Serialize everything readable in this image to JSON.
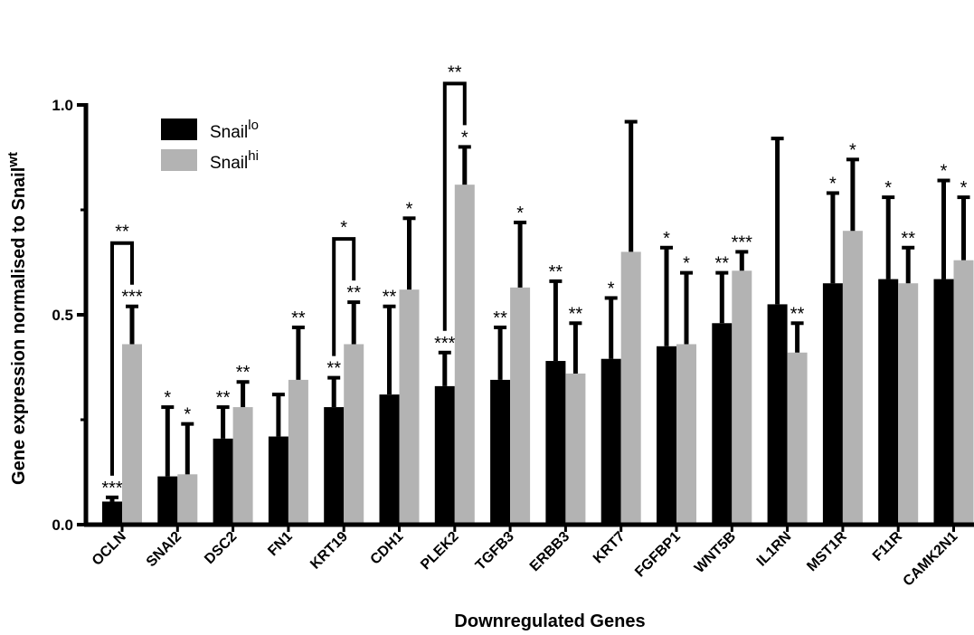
{
  "chart_data": {
    "type": "bar",
    "xlabel": "Downregulated Genes",
    "ylabel_main": "Gene expression normalised to Snail",
    "ylabel_sup": "wt",
    "ylim": [
      0,
      1.0
    ],
    "yticks": [
      "0.0",
      "0.5",
      "1.0"
    ],
    "ytick_values": [
      0,
      0.5,
      1.0
    ],
    "categories": [
      "OCLN",
      "SNAI2",
      "DSC2",
      "FN1",
      "KRT19",
      "CDH1",
      "PLEK2",
      "TGFB3",
      "ERBB3",
      "KRT7",
      "FGFBP1",
      "WNT5B",
      "IL1RN",
      "MST1R",
      "F11R",
      "CAMK2N1"
    ],
    "series": [
      {
        "name": "Snail",
        "name_sup": "lo",
        "color": "#000000",
        "values": [
          0.055,
          0.115,
          0.205,
          0.21,
          0.28,
          0.31,
          0.33,
          0.345,
          0.39,
          0.395,
          0.425,
          0.48,
          0.525,
          0.575,
          0.585,
          0.585
        ],
        "errors": [
          0.01,
          0.165,
          0.075,
          0.1,
          0.07,
          0.21,
          0.08,
          0.125,
          0.19,
          0.145,
          0.235,
          0.12,
          0.395,
          0.215,
          0.195,
          0.235
        ],
        "stars": [
          "***",
          "*",
          "**",
          "",
          "**",
          "**",
          "***",
          "**",
          "**",
          "*",
          "*",
          "**",
          "",
          "*",
          "*",
          "*"
        ]
      },
      {
        "name": "Snail",
        "name_sup": "hi",
        "color": "#b3b3b3",
        "values": [
          0.43,
          0.12,
          0.28,
          0.345,
          0.43,
          0.56,
          0.81,
          0.565,
          0.36,
          0.65,
          0.43,
          0.605,
          0.41,
          0.7,
          0.575,
          0.63
        ],
        "errors": [
          0.09,
          0.12,
          0.06,
          0.125,
          0.1,
          0.17,
          0.09,
          0.155,
          0.12,
          0.31,
          0.17,
          0.045,
          0.07,
          0.17,
          0.085,
          0.15
        ],
        "stars": [
          "***",
          "*",
          "**",
          "**",
          "**",
          "*",
          "*",
          "*",
          "**",
          "",
          "*",
          "***",
          "**",
          "*",
          "**",
          "*"
        ]
      }
    ],
    "brackets": [
      {
        "category": "OCLN",
        "label": "**"
      },
      {
        "category": "KRT19",
        "label": "*"
      },
      {
        "category": "PLEK2",
        "label": "**"
      }
    ],
    "legend_placement": "top-left",
    "grid": false
  }
}
